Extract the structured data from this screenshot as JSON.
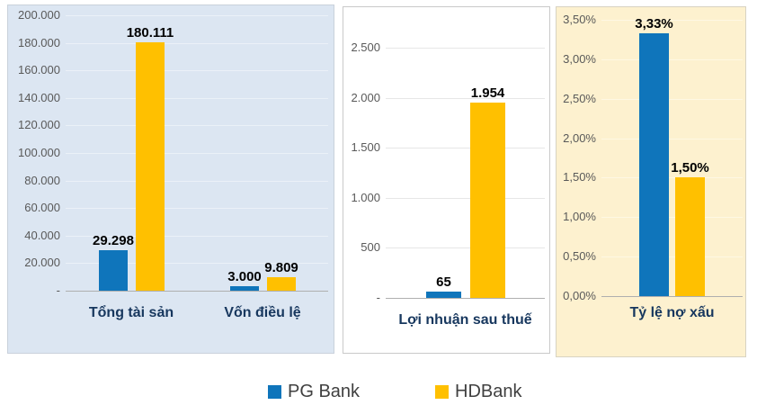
{
  "colors": {
    "pg_bank": "#0F75BB",
    "hdbank": "#FFC000",
    "axis_text": "#595959",
    "value_text": "#000000",
    "category_text": "#17375E",
    "legend_text": "#404040",
    "axis_line": "#AFAFAF"
  },
  "legend": {
    "items": [
      {
        "label": "PG Bank",
        "color": "#0F75BB"
      },
      {
        "label": "HDBank",
        "color": "#FFC000"
      }
    ]
  },
  "chart_data": [
    {
      "type": "bar",
      "name": "balance-sheet-chart",
      "title": "",
      "categories": [
        "Tổng tài sản",
        "Vốn điều lệ"
      ],
      "series": [
        {
          "name": "PG Bank",
          "values": [
            29298,
            3000
          ],
          "labels": [
            "29.298",
            "3.000"
          ]
        },
        {
          "name": "HDBank",
          "values": [
            180111,
            9809
          ],
          "labels": [
            "180.111",
            "9.809"
          ]
        }
      ],
      "y_ticks": [
        "200.000",
        "180.000",
        "160.000",
        "140.000",
        "120.000",
        "100.000",
        "80.000",
        "60.000",
        "40.000",
        "20.000",
        "-"
      ],
      "ylim": [
        0,
        200000
      ],
      "grid": true,
      "legend_position": "bottom",
      "panel_bg": "#DCE6F2",
      "panel_border": "#C9D1DB",
      "grid_color": "#EBF1F8"
    },
    {
      "type": "bar",
      "name": "profit-chart",
      "title": "",
      "categories": [
        "Lợi nhuận sau thuế"
      ],
      "series": [
        {
          "name": "PG Bank",
          "values": [
            65
          ],
          "labels": [
            "65"
          ]
        },
        {
          "name": "HDBank",
          "values": [
            1954
          ],
          "labels": [
            "1.954"
          ]
        }
      ],
      "y_ticks": [
        "2.500",
        "2.000",
        "1.500",
        "1.000",
        "500",
        "-"
      ],
      "ylim": [
        0,
        2500
      ],
      "grid": true,
      "legend_position": "bottom",
      "panel_bg": "#FFFFFF",
      "panel_border": "#C9C9C9",
      "grid_color": "#E7E7E7"
    },
    {
      "type": "bar",
      "name": "npl-ratio-chart",
      "title": "",
      "categories": [
        "Tỷ lệ nợ xấu"
      ],
      "series": [
        {
          "name": "PG Bank",
          "values": [
            3.33
          ],
          "labels": [
            "3,33%"
          ]
        },
        {
          "name": "HDBank",
          "values": [
            1.5
          ],
          "labels": [
            "1,50%"
          ]
        }
      ],
      "y_ticks": [
        "3,50%",
        "3,00%",
        "2,50%",
        "2,00%",
        "1,50%",
        "1,00%",
        "0,50%",
        "0,00%"
      ],
      "ylim": [
        0,
        3.5
      ],
      "grid": true,
      "legend_position": "bottom",
      "panel_bg": "#FDF1CF",
      "panel_border": "#D8D3C2",
      "grid_color": "#FEF8E3"
    }
  ]
}
